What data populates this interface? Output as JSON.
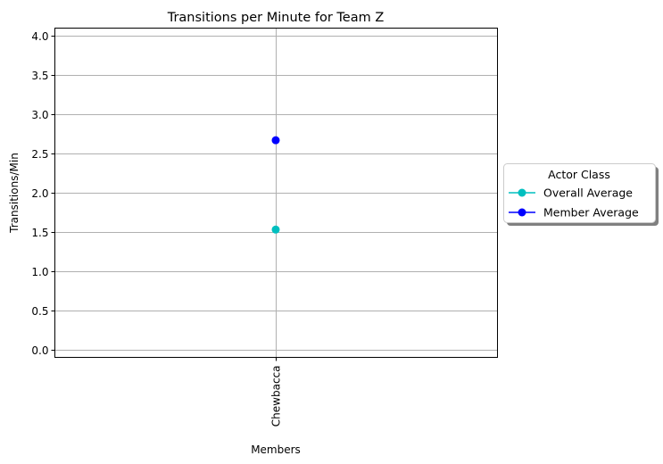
{
  "chart_data": {
    "type": "line",
    "title": "Transitions per Minute for Team Z",
    "xlabel": "Members",
    "ylabel": "Transitions/Min",
    "categories": [
      "Chewbacca"
    ],
    "ylim": [
      -0.1,
      4.1
    ],
    "yticks": [
      0.0,
      0.5,
      1.0,
      1.5,
      2.0,
      2.5,
      3.0,
      3.5,
      4.0
    ],
    "ytick_labels": [
      "0.0",
      "0.5",
      "1.0",
      "1.5",
      "2.0",
      "2.5",
      "3.0",
      "3.5",
      "4.0"
    ],
    "grid": true,
    "legend": {
      "title": "Actor Class",
      "placement": "center-right-outside"
    },
    "series": [
      {
        "name": "Overall Average",
        "values": [
          1.53
        ],
        "color": "#00bfbf"
      },
      {
        "name": "Member Average",
        "values": [
          2.67
        ],
        "color": "#0000ff"
      }
    ]
  }
}
